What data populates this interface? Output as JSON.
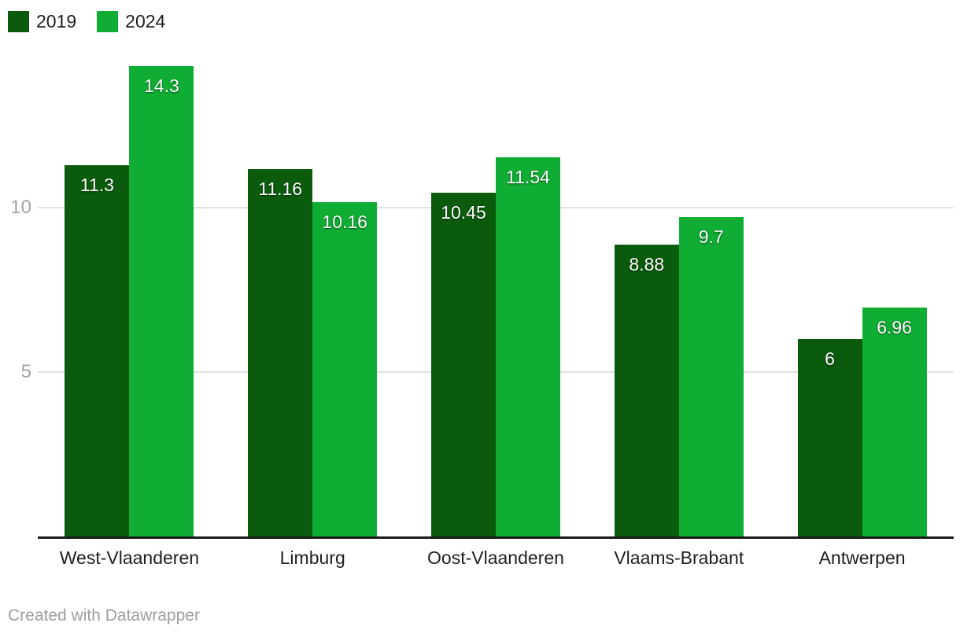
{
  "footer": {
    "text": "Created with Datawrapper"
  },
  "chart_data": {
    "type": "bar",
    "title": "",
    "xlabel": "",
    "ylabel": "",
    "categories": [
      "West-Vlaanderen",
      "Limburg",
      "Oost-Vlaanderen",
      "Vlaams-Brabant",
      "Antwerpen"
    ],
    "series": [
      {
        "name": "2019",
        "color": "#0a5c0c",
        "values": [
          11.3,
          11.16,
          10.45,
          8.88,
          6
        ]
      },
      {
        "name": "2024",
        "color": "#0fad33",
        "values": [
          14.3,
          10.16,
          11.54,
          9.7,
          6.96
        ]
      }
    ],
    "yticks": [
      5,
      10
    ],
    "ylim": [
      0,
      14.83
    ],
    "grid": true,
    "value_labels": true,
    "legend_position": "top-left",
    "colors": {
      "axis_line": "#1a1a1a",
      "gridline": "#e2e2e2",
      "tick_label": "#a3a3a3",
      "category_label": "#1f1f1f",
      "value_label": "#ffffff",
      "background": "#ffffff"
    }
  }
}
